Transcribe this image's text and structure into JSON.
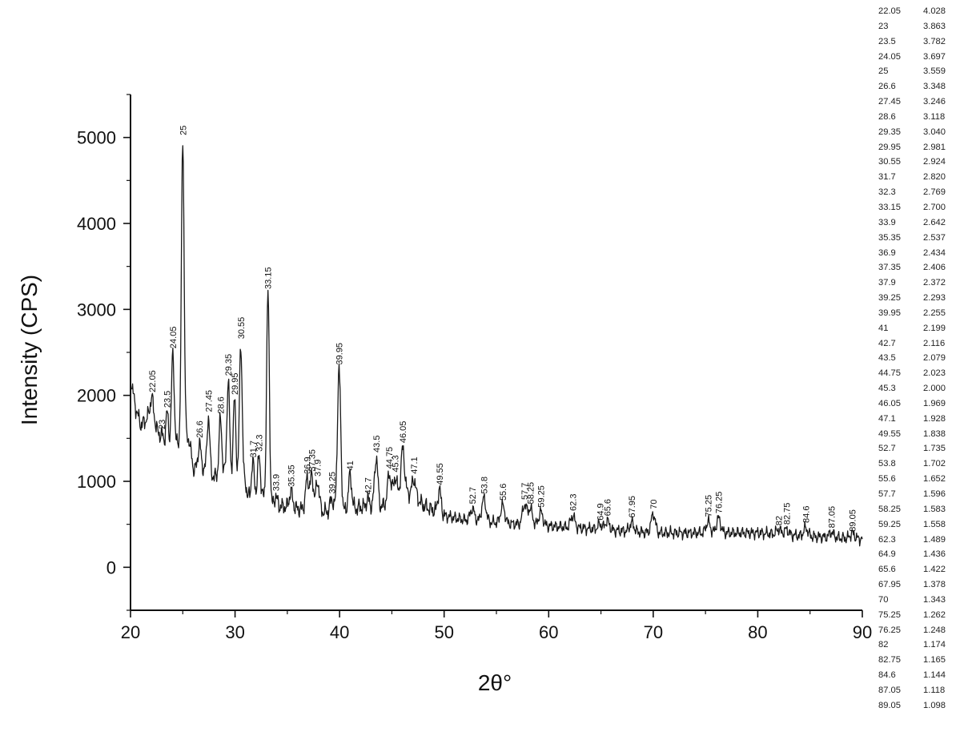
{
  "chart_data": {
    "type": "line",
    "xlabel": "2θ°",
    "ylabel": "Intensity (CPS)",
    "xlim": [
      20,
      90
    ],
    "ylim": [
      -500,
      5500
    ],
    "xticks": [
      "20",
      "30",
      "40",
      "50",
      "60",
      "70",
      "80",
      "90"
    ],
    "yticks": [
      "0",
      "1000",
      "2000",
      "3000",
      "4000",
      "5000"
    ],
    "peaks": [
      {
        "x": 22.05,
        "y": 1980,
        "label": "22.05"
      },
      {
        "x": 23,
        "y": 1550,
        "label": "23"
      },
      {
        "x": 23.5,
        "y": 1800,
        "label": "23.5"
      },
      {
        "x": 24.05,
        "y": 2490,
        "label": "24.05"
      },
      {
        "x": 25,
        "y": 4970,
        "label": "25"
      },
      {
        "x": 26.6,
        "y": 1450,
        "label": "26.6"
      },
      {
        "x": 27.45,
        "y": 1750,
        "label": "27.45"
      },
      {
        "x": 28.6,
        "y": 1730,
        "label": "28.6"
      },
      {
        "x": 29.35,
        "y": 2170,
        "label": "29.35"
      },
      {
        "x": 29.95,
        "y": 1950,
        "label": "29.95"
      },
      {
        "x": 30.55,
        "y": 2600,
        "label": "30.55"
      },
      {
        "x": 31.7,
        "y": 1220,
        "label": "31.7"
      },
      {
        "x": 32.3,
        "y": 1290,
        "label": "32.3"
      },
      {
        "x": 33.15,
        "y": 3180,
        "label": "33.15"
      },
      {
        "x": 33.9,
        "y": 830,
        "label": "33.9"
      },
      {
        "x": 35.35,
        "y": 880,
        "label": "35.35"
      },
      {
        "x": 36.9,
        "y": 1030,
        "label": "36.9"
      },
      {
        "x": 37.35,
        "y": 1060,
        "label": "37.35"
      },
      {
        "x": 37.9,
        "y": 1000,
        "label": "37.9"
      },
      {
        "x": 39.25,
        "y": 800,
        "label": "39.25"
      },
      {
        "x": 39.95,
        "y": 2300,
        "label": "39.95"
      },
      {
        "x": 41,
        "y": 1070,
        "label": "41"
      },
      {
        "x": 42.7,
        "y": 790,
        "label": "42.7"
      },
      {
        "x": 43.5,
        "y": 1280,
        "label": "43.5"
      },
      {
        "x": 44.75,
        "y": 1090,
        "label": "44.75"
      },
      {
        "x": 45.3,
        "y": 1050,
        "label": "45.3"
      },
      {
        "x": 46.05,
        "y": 1390,
        "label": "46.05"
      },
      {
        "x": 47.1,
        "y": 1030,
        "label": "47.1"
      },
      {
        "x": 49.55,
        "y": 900,
        "label": "49.55"
      },
      {
        "x": 52.7,
        "y": 680,
        "label": "52.7"
      },
      {
        "x": 53.8,
        "y": 800,
        "label": "53.8"
      },
      {
        "x": 55.6,
        "y": 720,
        "label": "55.6"
      },
      {
        "x": 57.7,
        "y": 730,
        "label": "57.7"
      },
      {
        "x": 58.25,
        "y": 680,
        "label": "58.25"
      },
      {
        "x": 59.25,
        "y": 640,
        "label": "59.25"
      },
      {
        "x": 62.3,
        "y": 600,
        "label": "62.3"
      },
      {
        "x": 64.9,
        "y": 490,
        "label": "64.9"
      },
      {
        "x": 65.6,
        "y": 540,
        "label": "65.6"
      },
      {
        "x": 67.95,
        "y": 520,
        "label": "67.95"
      },
      {
        "x": 70,
        "y": 620,
        "label": "70"
      },
      {
        "x": 75.25,
        "y": 530,
        "label": "75.25"
      },
      {
        "x": 76.25,
        "y": 570,
        "label": "76.25"
      },
      {
        "x": 82,
        "y": 430,
        "label": "82"
      },
      {
        "x": 82.75,
        "y": 440,
        "label": "82.75"
      },
      {
        "x": 84.6,
        "y": 460,
        "label": "84.6"
      },
      {
        "x": 87.05,
        "y": 400,
        "label": "87.05"
      },
      {
        "x": 89.05,
        "y": 360,
        "label": "89.05"
      }
    ],
    "background": [
      [
        20.0,
        2200
      ],
      [
        20.5,
        1850
      ],
      [
        21.0,
        1650
      ],
      [
        21.5,
        1720
      ],
      [
        22.0,
        1850
      ],
      [
        23.0,
        1400
      ],
      [
        24.0,
        1400
      ],
      [
        25.6,
        1500
      ],
      [
        26.0,
        1150
      ],
      [
        27.0,
        1150
      ],
      [
        28.0,
        1050
      ],
      [
        29.0,
        1100
      ],
      [
        30.0,
        1000
      ],
      [
        31.0,
        1000
      ],
      [
        31.2,
        820
      ],
      [
        32.0,
        850
      ],
      [
        33.0,
        800
      ],
      [
        33.6,
        720
      ],
      [
        35.0,
        700
      ],
      [
        36.0,
        680
      ],
      [
        39.0,
        640
      ],
      [
        40.6,
        650
      ],
      [
        42.0,
        700
      ],
      [
        44.0,
        700
      ],
      [
        46.0,
        900
      ],
      [
        47.3,
        820
      ],
      [
        48.0,
        720
      ],
      [
        50.0,
        600
      ],
      [
        52.0,
        550
      ],
      [
        55.0,
        520
      ],
      [
        60.0,
        480
      ],
      [
        65.0,
        440
      ],
      [
        70.0,
        400
      ],
      [
        75.0,
        400
      ],
      [
        80.0,
        400
      ],
      [
        85.0,
        360
      ],
      [
        90.0,
        330
      ]
    ],
    "table_rows": [
      [
        "22.05",
        "4.028"
      ],
      [
        "23",
        "3.863"
      ],
      [
        "23.5",
        "3.782"
      ],
      [
        "24.05",
        "3.697"
      ],
      [
        "25",
        "3.559"
      ],
      [
        "26.6",
        "3.348"
      ],
      [
        "27.45",
        "3.246"
      ],
      [
        "28.6",
        "3.118"
      ],
      [
        "29.35",
        "3.040"
      ],
      [
        "29.95",
        "2.981"
      ],
      [
        "30.55",
        "2.924"
      ],
      [
        "31.7",
        "2.820"
      ],
      [
        "32.3",
        "2.769"
      ],
      [
        "33.15",
        "2.700"
      ],
      [
        "33.9",
        "2.642"
      ],
      [
        "35.35",
        "2.537"
      ],
      [
        "36.9",
        "2.434"
      ],
      [
        "37.35",
        "2.406"
      ],
      [
        "37.9",
        "2.372"
      ],
      [
        "39.25",
        "2.293"
      ],
      [
        "39.95",
        "2.255"
      ],
      [
        "41",
        "2.199"
      ],
      [
        "42.7",
        "2.116"
      ],
      [
        "43.5",
        "2.079"
      ],
      [
        "44.75",
        "2.023"
      ],
      [
        "45.3",
        "2.000"
      ],
      [
        "46.05",
        "1.969"
      ],
      [
        "47.1",
        "1.928"
      ],
      [
        "49.55",
        "1.838"
      ],
      [
        "52.7",
        "1.735"
      ],
      [
        "53.8",
        "1.702"
      ],
      [
        "55.6",
        "1.652"
      ],
      [
        "57.7",
        "1.596"
      ],
      [
        "58.25",
        "1.583"
      ],
      [
        "59.25",
        "1.558"
      ],
      [
        "62.3",
        "1.489"
      ],
      [
        "64.9",
        "1.436"
      ],
      [
        "65.6",
        "1.422"
      ],
      [
        "67.95",
        "1.378"
      ],
      [
        "70",
        "1.343"
      ],
      [
        "75.25",
        "1.262"
      ],
      [
        "76.25",
        "1.248"
      ],
      [
        "82",
        "1.174"
      ],
      [
        "82.75",
        "1.165"
      ],
      [
        "84.6",
        "1.144"
      ],
      [
        "87.05",
        "1.118"
      ],
      [
        "89.05",
        "1.098"
      ]
    ],
    "grid": false,
    "line_color": "#1a1a1a"
  }
}
